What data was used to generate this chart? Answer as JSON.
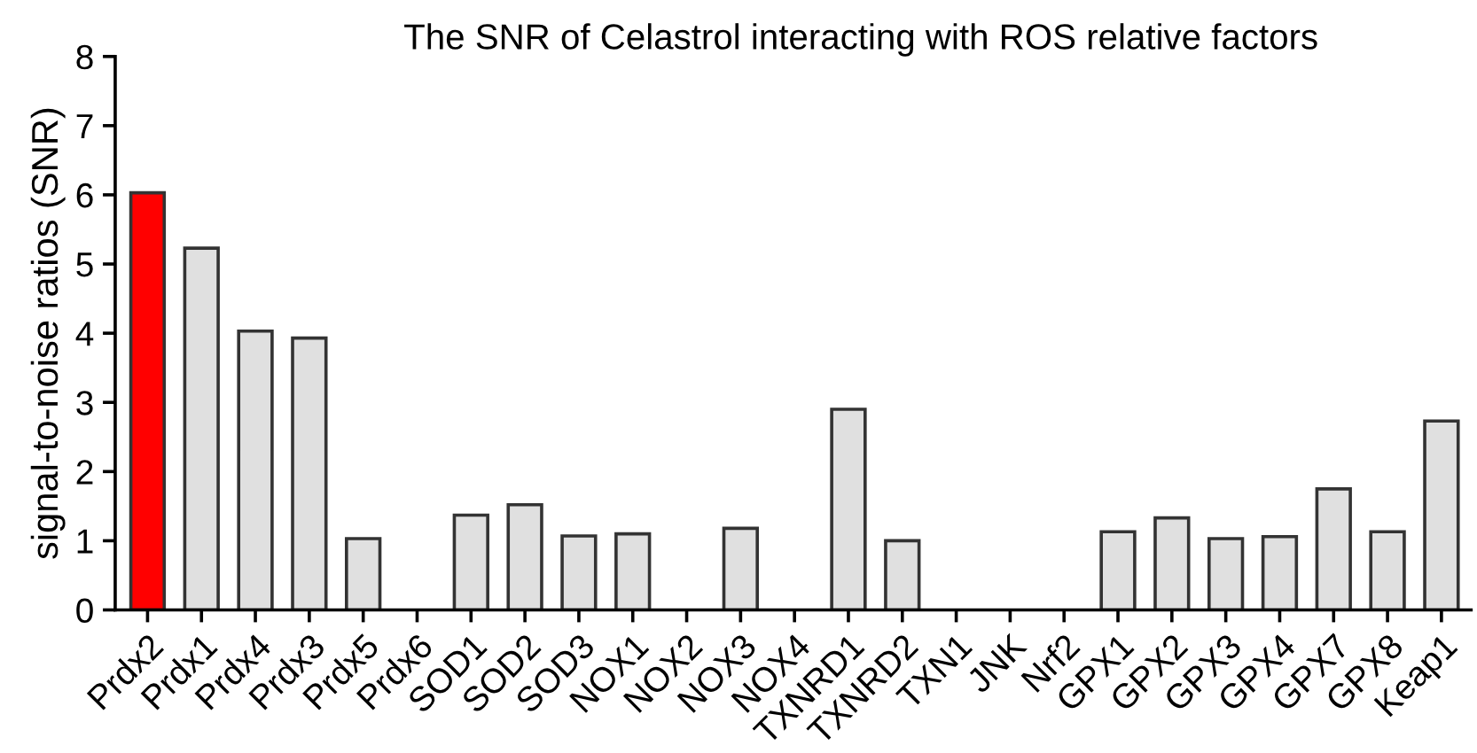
{
  "chart_data": {
    "type": "bar",
    "title": "The SNR of Celastrol interacting with ROS relative factors",
    "ylabel": "signal-to-noise ratios (SNR)",
    "categories": [
      "Prdx2",
      "Prdx1",
      "Prdx4",
      "Prdx3",
      "Prdx5",
      "Prdx6",
      "SOD1",
      "SOD2",
      "SOD3",
      "NOX1",
      "NOX2",
      "NOX3",
      "NOX4",
      "TXNRD1",
      "TXNRD2",
      "TXN1",
      "JNK",
      "Nrf2",
      "GPX1",
      "GPX2",
      "GPX3",
      "GPX4",
      "GPX7",
      "GPX8",
      "Keap1"
    ],
    "values": [
      6.03,
      5.23,
      4.03,
      3.93,
      1.03,
      null,
      1.37,
      1.52,
      1.07,
      1.1,
      null,
      1.18,
      null,
      2.9,
      1.0,
      null,
      null,
      null,
      1.13,
      1.33,
      1.03,
      1.06,
      1.75,
      1.13,
      2.73
    ],
    "colors": [
      "#ff0000",
      "#e0e0e0",
      "#e0e0e0",
      "#e0e0e0",
      "#e0e0e0",
      "#e0e0e0",
      "#e0e0e0",
      "#e0e0e0",
      "#e0e0e0",
      "#e0e0e0",
      "#e0e0e0",
      "#e0e0e0",
      "#e0e0e0",
      "#e0e0e0",
      "#e0e0e0",
      "#e0e0e0",
      "#e0e0e0",
      "#e0e0e0",
      "#e0e0e0",
      "#e0e0e0",
      "#e0e0e0",
      "#e0e0e0",
      "#e0e0e0",
      "#e0e0e0",
      "#e0e0e0"
    ],
    "ylim": [
      0,
      8
    ],
    "yticks": [
      0,
      1,
      2,
      3,
      4,
      5,
      6,
      7,
      8
    ],
    "grid": false,
    "legend": false
  }
}
